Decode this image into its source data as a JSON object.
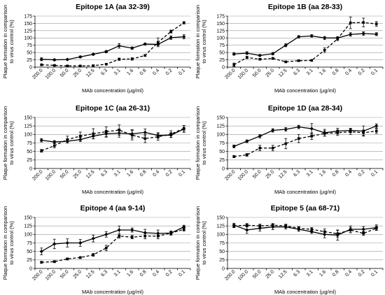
{
  "chart_data": [
    {
      "type": "line",
      "title": "Epitope 1A (aa 32-39)",
      "xlabel": "MAb concentration (µg/ml)",
      "ylabel": "Plaque formation in comparison to virus control (%)",
      "categories": [
        "200.0",
        "100.0",
        "50.0",
        "25.0",
        "12.5",
        "6.3",
        "3.1",
        "1.6",
        "0.8",
        "0.4",
        "0.2",
        "0.1"
      ],
      "ylim": [
        0,
        175
      ],
      "yticks": [
        "0",
        "25",
        "50",
        "75",
        "100",
        "125",
        "150",
        "175"
      ],
      "grid": true,
      "series": [
        {
          "style": "solid",
          "marker": "diamond",
          "values": [
            27,
            25,
            26,
            35,
            44,
            53,
            73,
            65,
            79,
            78,
            101,
            104
          ],
          "errors": [
            5,
            3,
            2,
            3,
            3,
            4,
            8,
            4,
            3,
            4,
            6,
            7
          ]
        },
        {
          "style": "dashed",
          "marker": "square",
          "values": [
            8,
            6,
            4,
            4,
            5,
            10,
            27,
            28,
            40,
            85,
            122,
            152
          ],
          "errors": [
            3,
            2,
            2,
            1,
            1,
            2,
            4,
            4,
            3,
            15,
            5,
            4
          ]
        }
      ]
    },
    {
      "type": "line",
      "title": "Epitope 1B (aa 28-33)",
      "xlabel": "MAb concentration (µg/ml)",
      "ylabel": "Plaque formation in comparison to virus control (%)",
      "categories": [
        "200.0",
        "100.0",
        "50.0",
        "25.0",
        "12.5",
        "6.3",
        "3.1",
        "1.6",
        "0.8",
        "0.4",
        "0.2",
        "0.1"
      ],
      "ylim": [
        0,
        175
      ],
      "yticks": [
        "0",
        "25",
        "50",
        "75",
        "100",
        "125",
        "150",
        "175"
      ],
      "grid": true,
      "series": [
        {
          "style": "solid",
          "marker": "diamond",
          "values": [
            45,
            48,
            40,
            46,
            75,
            104,
            107,
            100,
            100,
            112,
            115,
            113
          ],
          "errors": [
            4,
            5,
            3,
            4,
            5,
            4,
            4,
            5,
            4,
            6,
            6,
            5
          ]
        },
        {
          "style": "dashed",
          "marker": "square",
          "values": [
            8,
            33,
            27,
            30,
            18,
            22,
            23,
            58,
            97,
            152,
            153,
            148
          ],
          "errors": [
            6,
            4,
            3,
            3,
            2,
            3,
            3,
            8,
            6,
            20,
            15,
            8
          ]
        }
      ]
    },
    {
      "type": "line",
      "title": "Epitope 1C (aa 26-31)",
      "xlabel": "MAb concentration (µg/ml)",
      "ylabel": "Plaque formation in comparison to virus control (%)",
      "categories": [
        "200.0",
        "100.0",
        "50.0",
        "25.0",
        "12.5",
        "6.3",
        "3.1",
        "1.6",
        "0.8",
        "0.4",
        "0.2",
        "0.1"
      ],
      "ylim": [
        0,
        150
      ],
      "yticks": [
        "0",
        "25",
        "50",
        "75",
        "100",
        "125",
        "150"
      ],
      "grid": true,
      "series": [
        {
          "style": "solid",
          "marker": "diamond",
          "values": [
            83,
            78,
            80,
            85,
            95,
            102,
            104,
            102,
            106,
            97,
            98,
            116
          ],
          "errors": [
            5,
            4,
            5,
            6,
            8,
            10,
            12,
            12,
            10,
            8,
            7,
            10
          ]
        },
        {
          "style": "dashed",
          "marker": "square",
          "values": [
            52,
            67,
            85,
            95,
            102,
            108,
            113,
            98,
            88,
            93,
            101,
            118
          ],
          "errors": [
            4,
            6,
            10,
            12,
            15,
            14,
            15,
            14,
            12,
            10,
            10,
            8
          ]
        }
      ]
    },
    {
      "type": "line",
      "title": "Epitope 1D (aa 28-34)",
      "xlabel": "MAb concentration (µg/ml)",
      "ylabel": "Plaque formation in comparison to virus control (%)",
      "categories": [
        "200.0",
        "100.0",
        "50.0",
        "25.0",
        "12.5",
        "6.3",
        "3.1",
        "1.6",
        "0.8",
        "0.4",
        "0.2",
        "0.1"
      ],
      "ylim": [
        0,
        150
      ],
      "yticks": [
        "0",
        "25",
        "50",
        "75",
        "100",
        "125",
        "150"
      ],
      "grid": true,
      "series": [
        {
          "style": "solid",
          "marker": "diamond",
          "values": [
            65,
            80,
            95,
            112,
            115,
            122,
            117,
            105,
            110,
            112,
            110,
            125
          ],
          "errors": [
            4,
            4,
            5,
            5,
            5,
            5,
            15,
            10,
            8,
            6,
            15,
            6
          ]
        },
        {
          "style": "dashed",
          "marker": "square",
          "values": [
            35,
            40,
            60,
            60,
            73,
            88,
            95,
            103,
            105,
            108,
            105,
            110
          ],
          "errors": [
            3,
            4,
            8,
            8,
            15,
            12,
            10,
            8,
            8,
            8,
            8,
            7
          ]
        }
      ]
    },
    {
      "type": "line",
      "title": "Epitope 4 (aa 9-14)",
      "xlabel": "MAb concentration (µg/ml)",
      "ylabel": "Plaque formation in comparison to virus control (%)",
      "categories": [
        "200.0",
        "100.0",
        "50.0",
        "25.0",
        "12.5",
        "6.3",
        "3.1",
        "1.6",
        "0.8",
        "0.4",
        "0.2",
        "0.1"
      ],
      "ylim": [
        0,
        150
      ],
      "yticks": [
        "0",
        "25",
        "50",
        "75",
        "100",
        "125",
        "150"
      ],
      "grid": true,
      "series": [
        {
          "style": "solid",
          "marker": "diamond",
          "values": [
            50,
            72,
            75,
            75,
            88,
            100,
            113,
            113,
            105,
            103,
            104,
            122
          ],
          "errors": [
            10,
            14,
            12,
            10,
            10,
            8,
            12,
            6,
            10,
            10,
            6,
            5
          ]
        },
        {
          "style": "dashed",
          "marker": "square",
          "values": [
            18,
            20,
            28,
            32,
            40,
            60,
            95,
            92,
            95,
            95,
            104,
            115
          ],
          "errors": [
            3,
            3,
            3,
            3,
            4,
            8,
            6,
            5,
            8,
            8,
            5,
            5
          ]
        }
      ]
    },
    {
      "type": "line",
      "title": "Epitope 5 (aa 68-71)",
      "xlabel": "MAb concentration (µg/ml)",
      "ylabel": "Plaque formation in comparison to virus control (%)",
      "categories": [
        "200.0",
        "100.0",
        "50.0",
        "25.0",
        "12.5",
        "6.3",
        "3.1",
        "1.6",
        "0.8",
        "0.4",
        "0.2",
        "0.1"
      ],
      "ylim": [
        0,
        150
      ],
      "yticks": [
        "0",
        "25",
        "50",
        "75",
        "100",
        "125",
        "150"
      ],
      "grid": true,
      "series": [
        {
          "style": "solid",
          "marker": "diamond",
          "values": [
            127,
            113,
            118,
            122,
            122,
            115,
            108,
            100,
            98,
            115,
            115,
            120
          ],
          "errors": [
            6,
            10,
            8,
            8,
            6,
            6,
            5,
            10,
            15,
            10,
            8,
            8
          ]
        },
        {
          "style": "dashed",
          "marker": "square",
          "values": [
            125,
            127,
            125,
            127,
            125,
            118,
            115,
            108,
            102,
            113,
            103,
            118
          ],
          "errors": [
            5,
            5,
            5,
            5,
            5,
            5,
            5,
            8,
            10,
            8,
            6,
            6
          ]
        }
      ]
    }
  ]
}
